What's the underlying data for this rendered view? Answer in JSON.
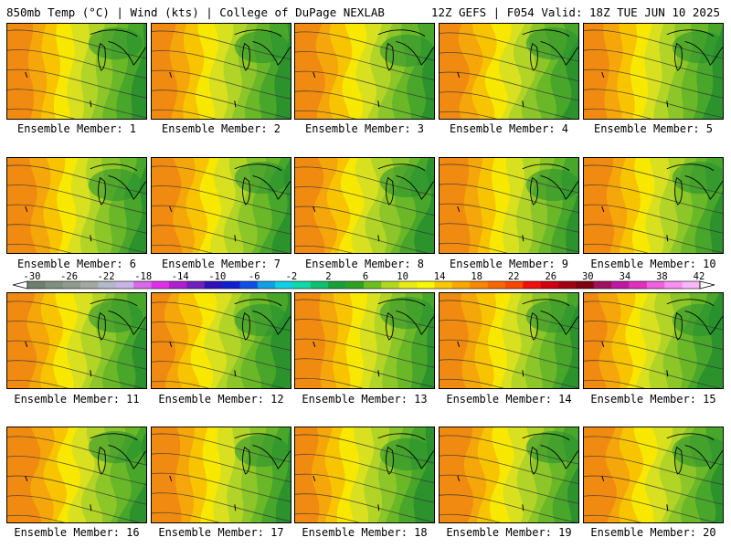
{
  "header": {
    "left": "850mb Temp (°C) | Wind (kts) | College of DuPage NEXLAB",
    "right": "12Z GEFS | F054 Valid: 18Z TUE JUN 10 2025"
  },
  "members": [
    {
      "label": "Ensemble Member: 1"
    },
    {
      "label": "Ensemble Member: 2"
    },
    {
      "label": "Ensemble Member: 3"
    },
    {
      "label": "Ensemble Member: 4"
    },
    {
      "label": "Ensemble Member: 5"
    },
    {
      "label": "Ensemble Member: 6"
    },
    {
      "label": "Ensemble Member: 7"
    },
    {
      "label": "Ensemble Member: 8"
    },
    {
      "label": "Ensemble Member: 9"
    },
    {
      "label": "Ensemble Member: 10"
    },
    {
      "label": "Ensemble Member: 11"
    },
    {
      "label": "Ensemble Member: 12"
    },
    {
      "label": "Ensemble Member: 13"
    },
    {
      "label": "Ensemble Member: 14"
    },
    {
      "label": "Ensemble Member: 15"
    },
    {
      "label": "Ensemble Member: 16"
    },
    {
      "label": "Ensemble Member: 17"
    },
    {
      "label": "Ensemble Member: 18"
    },
    {
      "label": "Ensemble Member: 19"
    },
    {
      "label": "Ensemble Member: 20"
    }
  ],
  "colorbar": {
    "tick_labels": [
      "-30",
      "-26",
      "-22",
      "-18",
      "-14",
      "-10",
      "-6",
      "-2",
      "2",
      "6",
      "10",
      "14",
      "18",
      "22",
      "26",
      "30",
      "34",
      "38",
      "42"
    ],
    "colors": [
      "#6e7f6e",
      "#7f8f80",
      "#909a90",
      "#a2a8a2",
      "#b4b9c8",
      "#c8b4e6",
      "#d76ae6",
      "#e030e6",
      "#b020d0",
      "#7020c0",
      "#3010b8",
      "#1020d0",
      "#1050e6",
      "#10a0e6",
      "#10d0e6",
      "#10d8a8",
      "#10c070",
      "#18a038",
      "#30a020",
      "#6ac020",
      "#b0d820",
      "#e8e818",
      "#f8f800",
      "#f8c800",
      "#f8a800",
      "#f88800",
      "#f86800",
      "#f84800",
      "#f01010",
      "#d00010",
      "#a00010",
      "#800010",
      "#a01060",
      "#c018a0",
      "#e030c0",
      "#f060e0",
      "#f890f0",
      "#f8b8f8"
    ]
  },
  "fields": {
    "palette": [
      "#f08a10",
      "#f4a60a",
      "#f8c400",
      "#f8e800",
      "#d8e020",
      "#b2d426",
      "#8cc628",
      "#6ab828",
      "#48a62a",
      "#2c922c"
    ]
  }
}
